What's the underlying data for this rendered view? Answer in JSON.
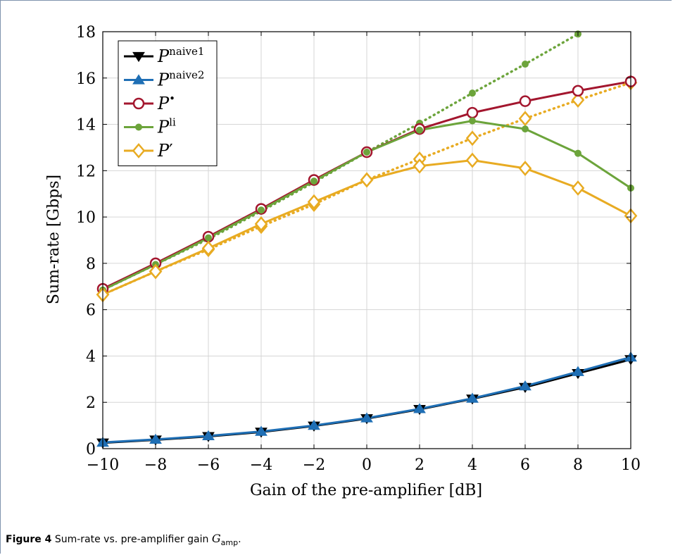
{
  "caption": {
    "label": "Figure 4",
    "text_before": "Sum-rate vs. pre-amplifier gain",
    "symbol": "G",
    "subscript": "amp",
    "text_after": "."
  },
  "chart_data": {
    "type": "line",
    "title": "",
    "xlabel": "Gain of the pre-amplifier [dB]",
    "ylabel": "Sum-rate [Gbps]",
    "xlim": [
      -10,
      10
    ],
    "ylim": [
      0,
      18
    ],
    "xticks": [
      -10,
      -8,
      -6,
      -4,
      -2,
      0,
      2,
      4,
      6,
      8,
      10
    ],
    "yticks": [
      0,
      2,
      4,
      6,
      8,
      10,
      12,
      14,
      16,
      18
    ],
    "grid": true,
    "legend_position": "top-left",
    "series": [
      {
        "name": "P",
        "sup": "naive1",
        "color": "#000000",
        "marker": "triangle-down",
        "dash": "solid",
        "x": [
          -10,
          -8,
          -6,
          -4,
          -2,
          0,
          2,
          4,
          6,
          8,
          10
        ],
        "y": [
          0.25,
          0.38,
          0.53,
          0.72,
          0.98,
          1.3,
          1.7,
          2.15,
          2.65,
          3.25,
          3.85
        ]
      },
      {
        "name": "P",
        "sup": "naive2",
        "color": "#1f6fb5",
        "marker": "triangle-up",
        "dash": "solid",
        "x": [
          -10,
          -8,
          -6,
          -4,
          -2,
          0,
          2,
          4,
          6,
          8,
          10
        ],
        "y": [
          0.27,
          0.4,
          0.55,
          0.74,
          1.0,
          1.32,
          1.72,
          2.17,
          2.7,
          3.32,
          3.95
        ]
      },
      {
        "name": "P",
        "sup": "•",
        "color": "#a3162e",
        "marker": "circle",
        "dash": "solid",
        "x": [
          -10,
          -8,
          -6,
          -4,
          -2,
          0,
          2,
          4,
          6,
          8,
          10
        ],
        "y": [
          6.9,
          8.0,
          9.15,
          10.35,
          11.6,
          12.8,
          13.8,
          14.5,
          15.0,
          15.45,
          15.85
        ]
      },
      {
        "name": "P",
        "sup": "li",
        "color": "#6ca43b",
        "marker": "dot",
        "dash": "solid",
        "x": [
          -10,
          -8,
          -6,
          -4,
          -2,
          0,
          2,
          4,
          6,
          8,
          10
        ],
        "y": [
          6.85,
          7.95,
          9.1,
          10.3,
          11.55,
          12.8,
          13.75,
          14.15,
          13.8,
          12.75,
          11.25
        ]
      },
      {
        "name": "P",
        "sup": "",
        "prime": "′",
        "color": "#e8ab22",
        "marker": "diamond",
        "dash": "solid",
        "x": [
          -10,
          -8,
          -6,
          -4,
          -2,
          0,
          2,
          4,
          6,
          8,
          10
        ],
        "y": [
          6.65,
          7.65,
          8.65,
          9.7,
          10.65,
          11.6,
          12.2,
          12.45,
          12.1,
          11.25,
          10.05
        ]
      },
      {
        "name": "",
        "color": "#6ca43b",
        "marker": "dot",
        "dash": "dotted",
        "x": [
          -10,
          -8,
          -6,
          -4,
          -2,
          0,
          2,
          4,
          6,
          8
        ],
        "y": [
          6.85,
          7.95,
          9.05,
          10.25,
          11.5,
          12.8,
          14.05,
          15.35,
          16.6,
          17.9
        ]
      },
      {
        "name": "",
        "color": "#e8ab22",
        "marker": "diamond",
        "dash": "dotted",
        "x": [
          -10,
          -8,
          -6,
          -4,
          -2,
          0,
          2,
          4,
          6,
          8,
          10
        ],
        "y": [
          6.65,
          7.65,
          8.6,
          9.6,
          10.55,
          11.6,
          12.5,
          13.4,
          14.25,
          15.05,
          15.8
        ]
      }
    ]
  }
}
